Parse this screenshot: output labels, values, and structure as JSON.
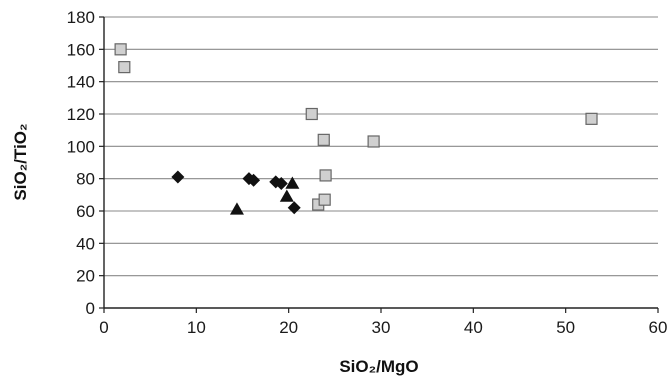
{
  "chart_data": {
    "type": "scatter",
    "title": "",
    "xlabel": "SiO₂/MgO",
    "ylabel": "SiO₂/TiO₂",
    "xlim": [
      0,
      60
    ],
    "ylim": [
      0,
      180
    ],
    "x_ticks": [
      0,
      10,
      20,
      30,
      40,
      50,
      60
    ],
    "y_ticks": [
      0,
      20,
      40,
      60,
      80,
      100,
      120,
      140,
      160,
      180
    ],
    "grid": "horizontal",
    "legend": "none",
    "series": [
      {
        "marker": "square",
        "color": "#d0d0d0",
        "stroke": "#666666",
        "points": [
          {
            "x": 1.8,
            "y": 160
          },
          {
            "x": 2.2,
            "y": 149
          },
          {
            "x": 22.5,
            "y": 120
          },
          {
            "x": 23.8,
            "y": 104
          },
          {
            "x": 29.2,
            "y": 103
          },
          {
            "x": 24.0,
            "y": 82
          },
          {
            "x": 23.2,
            "y": 64
          },
          {
            "x": 23.9,
            "y": 67
          },
          {
            "x": 52.8,
            "y": 117
          }
        ]
      },
      {
        "marker": "diamond",
        "color": "#111111",
        "points": [
          {
            "x": 8.0,
            "y": 81
          },
          {
            "x": 15.7,
            "y": 80
          },
          {
            "x": 16.2,
            "y": 79
          },
          {
            "x": 18.6,
            "y": 78
          },
          {
            "x": 19.2,
            "y": 77
          },
          {
            "x": 20.6,
            "y": 62
          }
        ]
      },
      {
        "marker": "triangle",
        "color": "#111111",
        "points": [
          {
            "x": 14.4,
            "y": 61
          },
          {
            "x": 19.8,
            "y": 69
          },
          {
            "x": 20.4,
            "y": 77
          }
        ]
      }
    ]
  }
}
